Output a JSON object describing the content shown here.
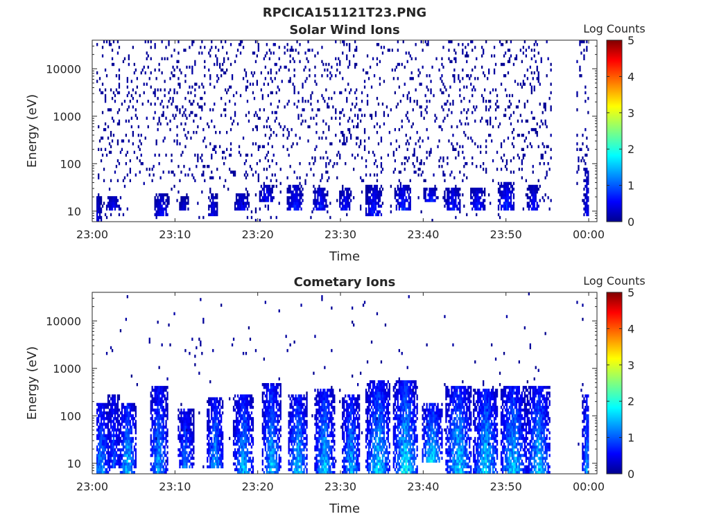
{
  "chart_data": [
    {
      "type": "heatmap",
      "supertitle": "RPCICA151121T23.PNG",
      "title": "Solar Wind Ions",
      "xlabel": "Time",
      "ylabel": "Energy (eV)",
      "x_ticks": [
        "23:00",
        "23:10",
        "23:20",
        "23:30",
        "23:40",
        "23:50",
        "00:00"
      ],
      "x_range_minutes": [
        0,
        61
      ],
      "y_scale": "log",
      "y_ticks": [
        10,
        100,
        1000,
        10000
      ],
      "ylim": [
        6,
        40000
      ],
      "colorbar": {
        "label": "Log Counts",
        "ticks": [
          0,
          1,
          2,
          3,
          4,
          5
        ],
        "range": [
          0,
          5
        ],
        "colormap": "jet"
      },
      "data_coverage_minutes": [
        [
          0.5,
          55.5
        ],
        [
          58.5,
          60.0
        ]
      ],
      "bursts": [
        {
          "t": 0.6,
          "w": 0.5,
          "emin": 6,
          "emax": 25,
          "peak": 0.5
        },
        {
          "t": 2.5,
          "w": 0.9,
          "emin": 10,
          "emax": 22,
          "peak": 0.7
        },
        {
          "t": 8.3,
          "w": 0.9,
          "emin": 8,
          "emax": 25,
          "peak": 0.7
        },
        {
          "t": 11.0,
          "w": 0.6,
          "emin": 10,
          "emax": 20,
          "peak": 0.5
        },
        {
          "t": 14.5,
          "w": 0.6,
          "emin": 8,
          "emax": 25,
          "peak": 0.6
        },
        {
          "t": 18.0,
          "w": 0.9,
          "emin": 10,
          "emax": 25,
          "peak": 0.7
        },
        {
          "t": 21.0,
          "w": 0.9,
          "emin": 15,
          "emax": 35,
          "peak": 0.8
        },
        {
          "t": 24.5,
          "w": 1.0,
          "emin": 10,
          "emax": 35,
          "peak": 0.9
        },
        {
          "t": 27.5,
          "w": 0.9,
          "emin": 10,
          "emax": 30,
          "peak": 0.9
        },
        {
          "t": 30.5,
          "w": 0.8,
          "emin": 10,
          "emax": 30,
          "peak": 0.8
        },
        {
          "t": 34.0,
          "w": 1.0,
          "emin": 8,
          "emax": 35,
          "peak": 0.9
        },
        {
          "t": 37.5,
          "w": 1.0,
          "emin": 10,
          "emax": 35,
          "peak": 1.0
        },
        {
          "t": 40.8,
          "w": 0.8,
          "emin": 15,
          "emax": 30,
          "peak": 1.0
        },
        {
          "t": 43.5,
          "w": 1.0,
          "emin": 10,
          "emax": 30,
          "peak": 0.9
        },
        {
          "t": 46.5,
          "w": 0.9,
          "emin": 10,
          "emax": 30,
          "peak": 0.9
        },
        {
          "t": 50.0,
          "w": 1.0,
          "emin": 10,
          "emax": 40,
          "peak": 1.0
        },
        {
          "t": 53.3,
          "w": 0.8,
          "emin": 10,
          "emax": 35,
          "peak": 0.8
        },
        {
          "t": 59.7,
          "w": 0.4,
          "emin": 8,
          "emax": 80,
          "peak": 0.7
        }
      ],
      "background_noise_density": 0.09
    },
    {
      "type": "heatmap",
      "title": "Cometary Ions",
      "xlabel": "Time",
      "ylabel": "Energy (eV)",
      "x_ticks": [
        "23:00",
        "23:10",
        "23:20",
        "23:30",
        "23:40",
        "23:50",
        "00:00"
      ],
      "x_range_minutes": [
        0,
        61
      ],
      "y_scale": "log",
      "y_ticks": [
        10,
        100,
        1000,
        10000
      ],
      "ylim": [
        6,
        40000
      ],
      "colorbar": {
        "label": "Log Counts",
        "ticks": [
          0,
          1,
          2,
          3,
          4,
          5
        ],
        "range": [
          0,
          5
        ],
        "colormap": "jet"
      },
      "data_coverage_minutes": [
        [
          0.5,
          55.5
        ],
        [
          58.5,
          60.0
        ]
      ],
      "bursts": [
        {
          "t": 1.0,
          "w": 1.1,
          "emin": 6,
          "emax": 200,
          "peak": 1.5
        },
        {
          "t": 2.5,
          "w": 0.8,
          "emin": 8,
          "emax": 300,
          "peak": 1.2
        },
        {
          "t": 4.2,
          "w": 1.0,
          "emin": 6,
          "emax": 200,
          "peak": 1.8
        },
        {
          "t": 8.0,
          "w": 1.1,
          "emin": 6,
          "emax": 450,
          "peak": 1.6
        },
        {
          "t": 11.2,
          "w": 1.0,
          "emin": 8,
          "emax": 150,
          "peak": 1.4
        },
        {
          "t": 14.8,
          "w": 1.0,
          "emin": 8,
          "emax": 250,
          "peak": 1.6
        },
        {
          "t": 18.2,
          "w": 1.2,
          "emin": 6,
          "emax": 300,
          "peak": 1.7
        },
        {
          "t": 21.6,
          "w": 1.1,
          "emin": 6,
          "emax": 500,
          "peak": 1.8
        },
        {
          "t": 24.8,
          "w": 1.2,
          "emin": 6,
          "emax": 300,
          "peak": 1.8
        },
        {
          "t": 28.0,
          "w": 1.2,
          "emin": 6,
          "emax": 350,
          "peak": 1.8
        },
        {
          "t": 31.2,
          "w": 1.1,
          "emin": 6,
          "emax": 300,
          "peak": 1.7
        },
        {
          "t": 34.5,
          "w": 1.5,
          "emin": 6,
          "emax": 550,
          "peak": 1.9
        },
        {
          "t": 37.8,
          "w": 1.5,
          "emin": 6,
          "emax": 550,
          "peak": 2.0
        },
        {
          "t": 41.0,
          "w": 1.3,
          "emin": 10,
          "emax": 200,
          "peak": 1.9
        },
        {
          "t": 44.2,
          "w": 1.6,
          "emin": 6,
          "emax": 450,
          "peak": 1.9
        },
        {
          "t": 47.5,
          "w": 1.5,
          "emin": 6,
          "emax": 350,
          "peak": 1.9
        },
        {
          "t": 50.8,
          "w": 1.6,
          "emin": 6,
          "emax": 450,
          "peak": 1.8
        },
        {
          "t": 53.9,
          "w": 1.4,
          "emin": 6,
          "emax": 450,
          "peak": 1.8
        },
        {
          "t": 59.7,
          "w": 0.6,
          "emin": 6,
          "emax": 300,
          "peak": 1.5
        }
      ],
      "background_noise_density": 0.01
    }
  ]
}
